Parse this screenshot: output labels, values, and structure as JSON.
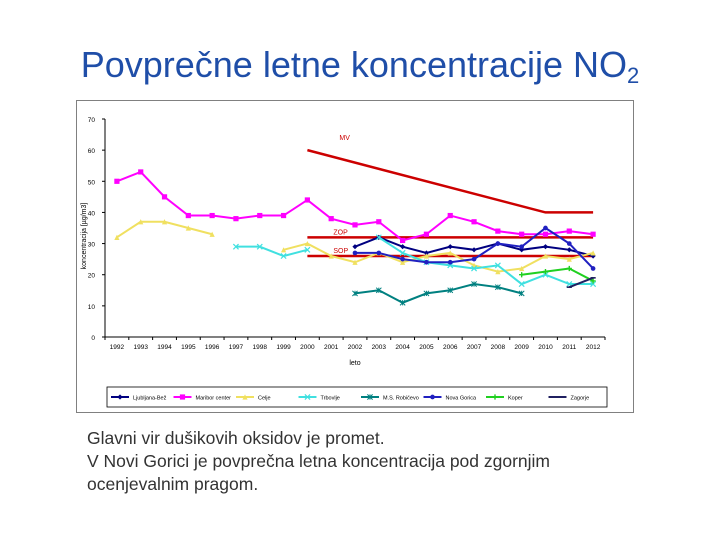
{
  "slide": {
    "title_main": "Povprečne letne koncentracije NO",
    "title_sub": "2",
    "caption_line1": "Glavni vir dušikovih oksidov je promet.",
    "caption_line2": "V Novi Gorici je povprečna letna koncentracija pod zgornjim",
    "caption_line3": "ocenjevalnim pragom."
  },
  "chart_data": {
    "type": "line",
    "title": "",
    "xlabel": "leto",
    "ylabel": "koncentracija [µg/m3]",
    "ylim": [
      0,
      70
    ],
    "yticks": [
      0,
      10,
      20,
      30,
      40,
      50,
      60,
      70
    ],
    "categories": [
      "1992",
      "1993",
      "1994",
      "1995",
      "1996",
      "1997",
      "1998",
      "1999",
      "2000",
      "2001",
      "2002",
      "2003",
      "2004",
      "2005",
      "2006",
      "2007",
      "2008",
      "2009",
      "2010",
      "2011",
      "2012"
    ],
    "series": [
      {
        "name": "Ljubljana-Bež",
        "color": "#000080",
        "marker": "diamond",
        "values": [
          null,
          null,
          null,
          null,
          null,
          null,
          null,
          null,
          null,
          null,
          29,
          32,
          29,
          27,
          29,
          28,
          30,
          28,
          29,
          28,
          26
        ]
      },
      {
        "name": "Maribor center",
        "color": "#ff00ff",
        "marker": "square",
        "values": [
          50,
          53,
          45,
          39,
          39,
          38,
          39,
          39,
          44,
          38,
          36,
          37,
          31,
          33,
          39,
          37,
          34,
          33,
          33,
          34,
          33
        ]
      },
      {
        "name": "Celje",
        "color": "#f0e060",
        "marker": "triangle",
        "values": [
          32,
          37,
          37,
          35,
          33,
          null,
          null,
          28,
          30,
          26,
          24,
          27,
          24,
          26,
          27,
          23,
          21,
          22,
          26,
          25,
          27
        ]
      },
      {
        "name": "Trbovlje",
        "color": "#40e0e0",
        "marker": "x",
        "values": [
          null,
          null,
          null,
          null,
          null,
          29,
          29,
          26,
          28,
          null,
          null,
          32,
          27,
          24,
          23,
          22,
          23,
          17,
          20,
          17,
          17
        ]
      },
      {
        "name": "M.S. Robičevo",
        "color": "#008080",
        "marker": "star",
        "values": [
          null,
          null,
          null,
          null,
          null,
          null,
          null,
          null,
          null,
          null,
          14,
          15,
          11,
          14,
          15,
          17,
          16,
          14,
          null,
          null,
          null
        ]
      },
      {
        "name": "Nova Gorica",
        "color": "#2020c0",
        "marker": "circle",
        "values": [
          null,
          null,
          null,
          null,
          null,
          null,
          null,
          null,
          null,
          null,
          27,
          27,
          25,
          24,
          24,
          25,
          30,
          29,
          35,
          30,
          22
        ]
      },
      {
        "name": "Koper",
        "color": "#20d020",
        "marker": "plus",
        "values": [
          null,
          null,
          null,
          null,
          null,
          null,
          null,
          null,
          null,
          null,
          null,
          null,
          null,
          null,
          null,
          null,
          null,
          20,
          21,
          22,
          18
        ]
      },
      {
        "name": "Zagorje",
        "color": "#202060",
        "marker": "dash",
        "values": [
          null,
          null,
          null,
          null,
          null,
          null,
          null,
          null,
          null,
          null,
          null,
          null,
          null,
          null,
          null,
          null,
          null,
          null,
          null,
          16,
          19
        ]
      }
    ],
    "reference_lines": [
      {
        "name": "MV",
        "color": "#cc0000",
        "x": [
          "2000",
          "2010",
          "2012"
        ],
        "values": [
          60,
          40,
          40
        ]
      },
      {
        "name": "ZOP",
        "color": "#cc0000",
        "x": [
          "2000",
          "2012"
        ],
        "values": [
          32,
          32
        ]
      },
      {
        "name": "SOP",
        "color": "#cc0000",
        "x": [
          "2000",
          "2012"
        ],
        "values": [
          26,
          26
        ]
      }
    ],
    "legend_position": "bottom"
  }
}
